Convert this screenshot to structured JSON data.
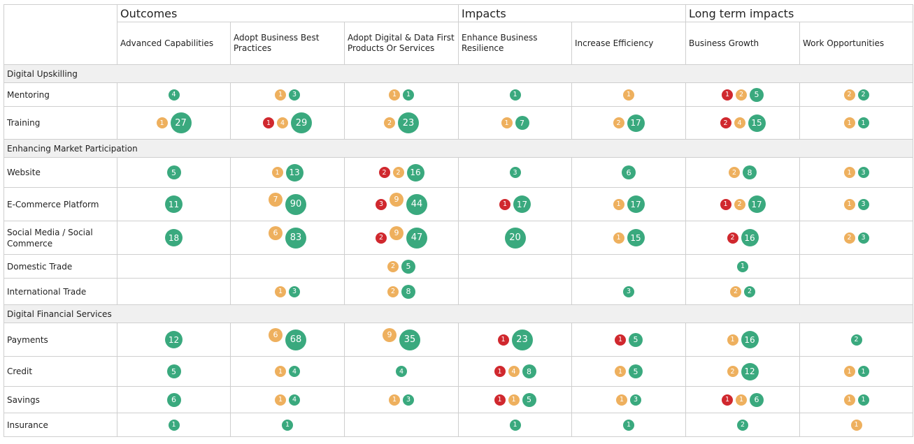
{
  "colors": {
    "red": "#d0282e",
    "orange": "#eeb05e",
    "green": "#3aa97e"
  },
  "chart_data": {
    "type": "table",
    "column_groups": [
      {
        "label": "Outcomes",
        "span": 3
      },
      {
        "label": "Impacts",
        "span": 2
      },
      {
        "label": "Long term impacts",
        "span": 2
      }
    ],
    "columns": [
      "Advanced Capabilities",
      "Adopt Business Best Practices",
      "Adopt Digital & Data First Products Or Services",
      "Enhance Business Resilience",
      "Increase Efficiency",
      "Business Growth",
      "Work Opportunities"
    ],
    "sections": [
      {
        "label": "Digital Upskilling",
        "rows": [
          {
            "label": "Mentoring",
            "cells": [
              [
                {
                  "c": "green",
                  "v": 4
                }
              ],
              [
                {
                  "c": "orange",
                  "v": 1
                },
                {
                  "c": "green",
                  "v": 3
                }
              ],
              [
                {
                  "c": "orange",
                  "v": 1
                },
                {
                  "c": "green",
                  "v": 1
                }
              ],
              [
                {
                  "c": "green",
                  "v": 1
                }
              ],
              [
                {
                  "c": "orange",
                  "v": 1
                }
              ],
              [
                {
                  "c": "red",
                  "v": 1
                },
                {
                  "c": "orange",
                  "v": 2
                },
                {
                  "c": "green",
                  "v": 5
                }
              ],
              [
                {
                  "c": "orange",
                  "v": 2
                },
                {
                  "c": "green",
                  "v": 2
                }
              ]
            ]
          },
          {
            "label": "Training",
            "cells": [
              [
                {
                  "c": "orange",
                  "v": 1
                },
                {
                  "c": "green",
                  "v": 27
                }
              ],
              [
                {
                  "c": "red",
                  "v": 1
                },
                {
                  "c": "orange",
                  "v": 4
                },
                {
                  "c": "green",
                  "v": 29
                }
              ],
              [
                {
                  "c": "orange",
                  "v": 2
                },
                {
                  "c": "green",
                  "v": 23
                }
              ],
              [
                {
                  "c": "orange",
                  "v": 1
                },
                {
                  "c": "green",
                  "v": 7
                }
              ],
              [
                {
                  "c": "orange",
                  "v": 2
                },
                {
                  "c": "green",
                  "v": 17
                }
              ],
              [
                {
                  "c": "red",
                  "v": 2
                },
                {
                  "c": "orange",
                  "v": 4
                },
                {
                  "c": "green",
                  "v": 15
                }
              ],
              [
                {
                  "c": "orange",
                  "v": 1
                },
                {
                  "c": "green",
                  "v": 1
                }
              ]
            ]
          }
        ]
      },
      {
        "label": "Enhancing Market Participation",
        "rows": [
          {
            "label": "Website",
            "cells": [
              [
                {
                  "c": "green",
                  "v": 5
                }
              ],
              [
                {
                  "c": "orange",
                  "v": 1
                },
                {
                  "c": "green",
                  "v": 13
                }
              ],
              [
                {
                  "c": "red",
                  "v": 2
                },
                {
                  "c": "orange",
                  "v": 2
                },
                {
                  "c": "green",
                  "v": 16
                }
              ],
              [
                {
                  "c": "green",
                  "v": 3
                }
              ],
              [
                {
                  "c": "green",
                  "v": 6
                }
              ],
              [
                {
                  "c": "orange",
                  "v": 2
                },
                {
                  "c": "green",
                  "v": 8
                }
              ],
              [
                {
                  "c": "orange",
                  "v": 1
                },
                {
                  "c": "green",
                  "v": 3
                }
              ]
            ]
          },
          {
            "label": "E-Commerce Platform",
            "cells": [
              [
                {
                  "c": "green",
                  "v": 11
                }
              ],
              [
                {
                  "c": "orange",
                  "v": 7
                },
                {
                  "c": "green",
                  "v": 90
                }
              ],
              [
                {
                  "c": "red",
                  "v": 3
                },
                {
                  "c": "orange",
                  "v": 9
                },
                {
                  "c": "green",
                  "v": 44
                }
              ],
              [
                {
                  "c": "red",
                  "v": 1
                },
                {
                  "c": "green",
                  "v": 17
                }
              ],
              [
                {
                  "c": "orange",
                  "v": 1
                },
                {
                  "c": "green",
                  "v": 17
                }
              ],
              [
                {
                  "c": "red",
                  "v": 1
                },
                {
                  "c": "orange",
                  "v": 2
                },
                {
                  "c": "green",
                  "v": 17
                }
              ],
              [
                {
                  "c": "orange",
                  "v": 1
                },
                {
                  "c": "green",
                  "v": 3
                }
              ]
            ]
          },
          {
            "label": "Social Media / Social Commerce",
            "cells": [
              [
                {
                  "c": "green",
                  "v": 18
                }
              ],
              [
                {
                  "c": "orange",
                  "v": 6
                },
                {
                  "c": "green",
                  "v": 83
                }
              ],
              [
                {
                  "c": "red",
                  "v": 2
                },
                {
                  "c": "orange",
                  "v": 9
                },
                {
                  "c": "green",
                  "v": 47
                }
              ],
              [
                {
                  "c": "green",
                  "v": 20
                }
              ],
              [
                {
                  "c": "orange",
                  "v": 1
                },
                {
                  "c": "green",
                  "v": 15
                }
              ],
              [
                {
                  "c": "red",
                  "v": 2
                },
                {
                  "c": "green",
                  "v": 16
                }
              ],
              [
                {
                  "c": "orange",
                  "v": 2
                },
                {
                  "c": "green",
                  "v": 3
                }
              ]
            ]
          },
          {
            "label": "Domestic Trade",
            "cells": [
              [],
              [],
              [
                {
                  "c": "orange",
                  "v": 2
                },
                {
                  "c": "green",
                  "v": 5
                }
              ],
              [],
              [],
              [
                {
                  "c": "green",
                  "v": 1
                }
              ],
              []
            ]
          },
          {
            "label": "International Trade",
            "cells": [
              [],
              [
                {
                  "c": "orange",
                  "v": 1
                },
                {
                  "c": "green",
                  "v": 3
                }
              ],
              [
                {
                  "c": "orange",
                  "v": 2
                },
                {
                  "c": "green",
                  "v": 8
                }
              ],
              [],
              [
                {
                  "c": "green",
                  "v": 3
                }
              ],
              [
                {
                  "c": "orange",
                  "v": 2
                },
                {
                  "c": "green",
                  "v": 2
                }
              ],
              []
            ]
          }
        ]
      },
      {
        "label": "Digital Financial Services",
        "rows": [
          {
            "label": "Payments",
            "cells": [
              [
                {
                  "c": "green",
                  "v": 12
                }
              ],
              [
                {
                  "c": "orange",
                  "v": 6
                },
                {
                  "c": "green",
                  "v": 68
                }
              ],
              [
                {
                  "c": "orange",
                  "v": 9
                },
                {
                  "c": "green",
                  "v": 35
                }
              ],
              [
                {
                  "c": "red",
                  "v": 1
                },
                {
                  "c": "green",
                  "v": 23
                }
              ],
              [
                {
                  "c": "red",
                  "v": 1
                },
                {
                  "c": "green",
                  "v": 5
                }
              ],
              [
                {
                  "c": "orange",
                  "v": 1
                },
                {
                  "c": "green",
                  "v": 16
                }
              ],
              [
                {
                  "c": "green",
                  "v": 2
                }
              ]
            ]
          },
          {
            "label": "Credit",
            "cells": [
              [
                {
                  "c": "green",
                  "v": 5
                }
              ],
              [
                {
                  "c": "orange",
                  "v": 1
                },
                {
                  "c": "green",
                  "v": 4
                }
              ],
              [
                {
                  "c": "green",
                  "v": 4
                }
              ],
              [
                {
                  "c": "red",
                  "v": 1
                },
                {
                  "c": "orange",
                  "v": 4
                },
                {
                  "c": "green",
                  "v": 8
                }
              ],
              [
                {
                  "c": "orange",
                  "v": 1
                },
                {
                  "c": "green",
                  "v": 5
                }
              ],
              [
                {
                  "c": "orange",
                  "v": 2
                },
                {
                  "c": "green",
                  "v": 12
                }
              ],
              [
                {
                  "c": "orange",
                  "v": 1
                },
                {
                  "c": "green",
                  "v": 1
                }
              ]
            ]
          },
          {
            "label": "Savings",
            "cells": [
              [
                {
                  "c": "green",
                  "v": 6
                }
              ],
              [
                {
                  "c": "orange",
                  "v": 1
                },
                {
                  "c": "green",
                  "v": 4
                }
              ],
              [
                {
                  "c": "orange",
                  "v": 1
                },
                {
                  "c": "green",
                  "v": 3
                }
              ],
              [
                {
                  "c": "red",
                  "v": 1
                },
                {
                  "c": "orange",
                  "v": 1
                },
                {
                  "c": "green",
                  "v": 5
                }
              ],
              [
                {
                  "c": "orange",
                  "v": 1
                },
                {
                  "c": "green",
                  "v": 3
                }
              ],
              [
                {
                  "c": "red",
                  "v": 1
                },
                {
                  "c": "orange",
                  "v": 1
                },
                {
                  "c": "green",
                  "v": 6
                }
              ],
              [
                {
                  "c": "orange",
                  "v": 1
                },
                {
                  "c": "green",
                  "v": 1
                }
              ]
            ]
          },
          {
            "label": "Insurance",
            "cells": [
              [
                {
                  "c": "green",
                  "v": 1
                }
              ],
              [
                {
                  "c": "green",
                  "v": 1
                }
              ],
              [],
              [
                {
                  "c": "green",
                  "v": 1
                }
              ],
              [
                {
                  "c": "green",
                  "v": 1
                }
              ],
              [
                {
                  "c": "green",
                  "v": 2
                }
              ],
              [
                {
                  "c": "orange",
                  "v": 1
                }
              ]
            ]
          }
        ]
      }
    ]
  }
}
